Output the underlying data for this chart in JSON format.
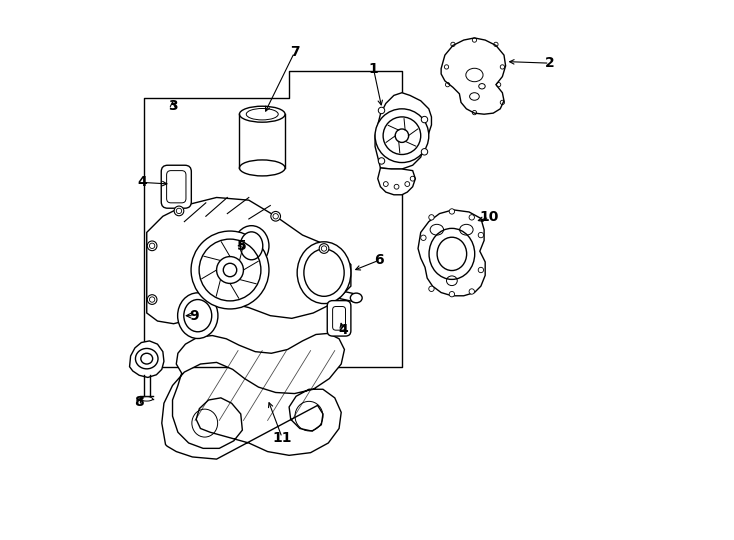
{
  "title": "",
  "bg_color": "#ffffff",
  "line_color": "#000000",
  "label_color": "#000000",
  "fig_width": 7.34,
  "fig_height": 5.4,
  "dpi": 100
}
